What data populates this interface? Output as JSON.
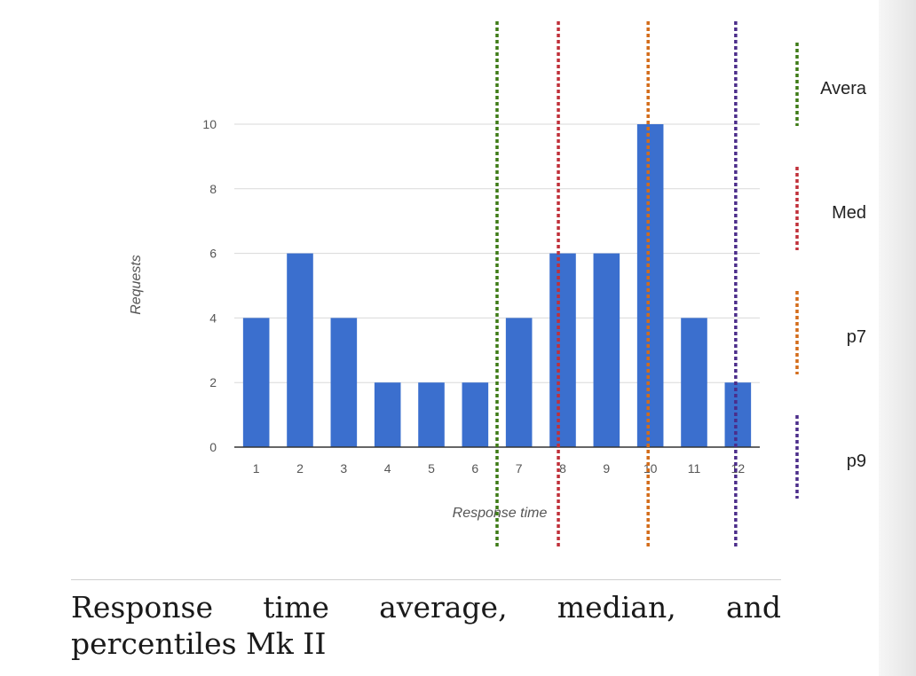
{
  "chart_data": {
    "type": "bar",
    "categories": [
      "1",
      "2",
      "3",
      "4",
      "5",
      "6",
      "7",
      "8",
      "9",
      "10",
      "11",
      "12"
    ],
    "values": [
      4,
      6,
      4,
      2,
      2,
      2,
      4,
      6,
      6,
      10,
      4,
      2
    ],
    "xlabel": "Response time",
    "ylabel": "Requests",
    "ylim": [
      0,
      10
    ],
    "yticks": [
      0,
      2,
      4,
      6,
      8,
      10
    ],
    "grid": true,
    "bar_color": "#3b6fce",
    "reference_lines": [
      {
        "label": "Avera",
        "x": 6.5,
        "color": "#3e7b17"
      },
      {
        "label": "Med",
        "x": 7.9,
        "color": "#c0303a"
      },
      {
        "label": "p7",
        "x": 9.95,
        "color": "#d36c1a"
      },
      {
        "label": "p9",
        "x": 11.95,
        "color": "#4b2d8a"
      }
    ],
    "legend_position": "right"
  },
  "caption": "Response time average, median, and percentiles Mk II"
}
